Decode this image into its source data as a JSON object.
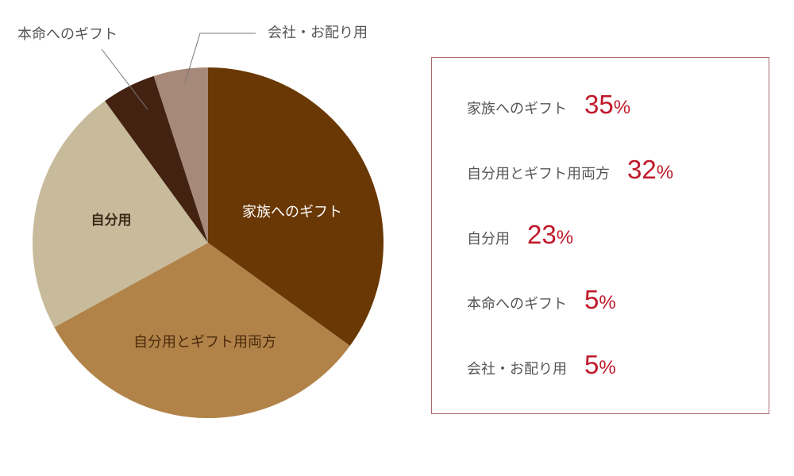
{
  "chart_data": {
    "type": "pie",
    "slices": [
      {
        "label": "家族へのギフト",
        "value": 35,
        "value_text": "35",
        "color": "#6a3804",
        "label_color": "#ffffff"
      },
      {
        "label": "自分用とギフト用両方",
        "value": 32,
        "value_text": "32",
        "color": "#b18349",
        "label_color": "#4a2a0a"
      },
      {
        "label": "自分用",
        "value": 23,
        "value_text": "23",
        "color": "#c8bb9c",
        "label_color": "#3a2a1a"
      },
      {
        "label": "本命へのギフト",
        "value": 5,
        "value_text": "5",
        "color": "#432212",
        "label_color": "#555555"
      },
      {
        "label": "会社・お配り用",
        "value": 5,
        "value_text": "5",
        "color": "#a68978",
        "label_color": "#555555"
      }
    ],
    "start": "12 o'clock",
    "direction": "clockwise",
    "legend": "right",
    "percent_symbol": "%",
    "outside_labels": {
      "honmei": "本命へのギフト",
      "company": "会社・お配り用"
    }
  },
  "colors": {
    "legend_border": "#b0676f",
    "value_red": "#c0192a",
    "leader_line": "#777777"
  }
}
